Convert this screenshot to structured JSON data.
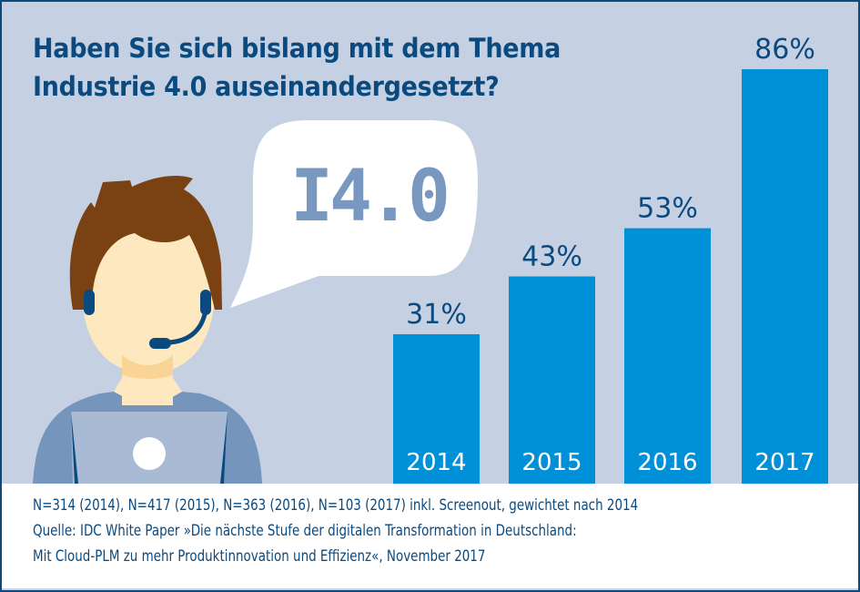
{
  "title_lines": [
    "Haben Sie sich bislang mit dem Thema",
    "Industrie 4.0 auseinandergesetzt?"
  ],
  "speech_bubble_text": "I4.0",
  "colors": {
    "bar": "#0090d7",
    "text_dark": "#0b4a7f",
    "background": "#c5d1e3",
    "dots": "#7898bf",
    "hair": "#7a4212",
    "skin": "#fde8bf"
  },
  "chart_data": {
    "type": "bar",
    "title": "Haben Sie sich bislang mit dem Thema Industrie 4.0 auseinandergesetzt?",
    "categories": [
      "2014",
      "2015",
      "2016",
      "2017"
    ],
    "values": [
      31,
      43,
      53,
      86
    ],
    "value_labels": [
      "31%",
      "43%",
      "53%",
      "86%"
    ],
    "unit": "%",
    "ylim": [
      0,
      86
    ],
    "grid": false
  },
  "footer": {
    "lines": [
      "N=314 (2014), N=417 (2015), N=363 (2016), N=103 (2017) inkl. Screenout, gewichtet nach 2014",
      "Quelle: IDC White Paper »Die nächste Stufe der digitalen Transformation in Deutschland:",
      "Mit Cloud-PLM zu mehr Produktinnovation und Effizienz«, November 2017"
    ]
  }
}
